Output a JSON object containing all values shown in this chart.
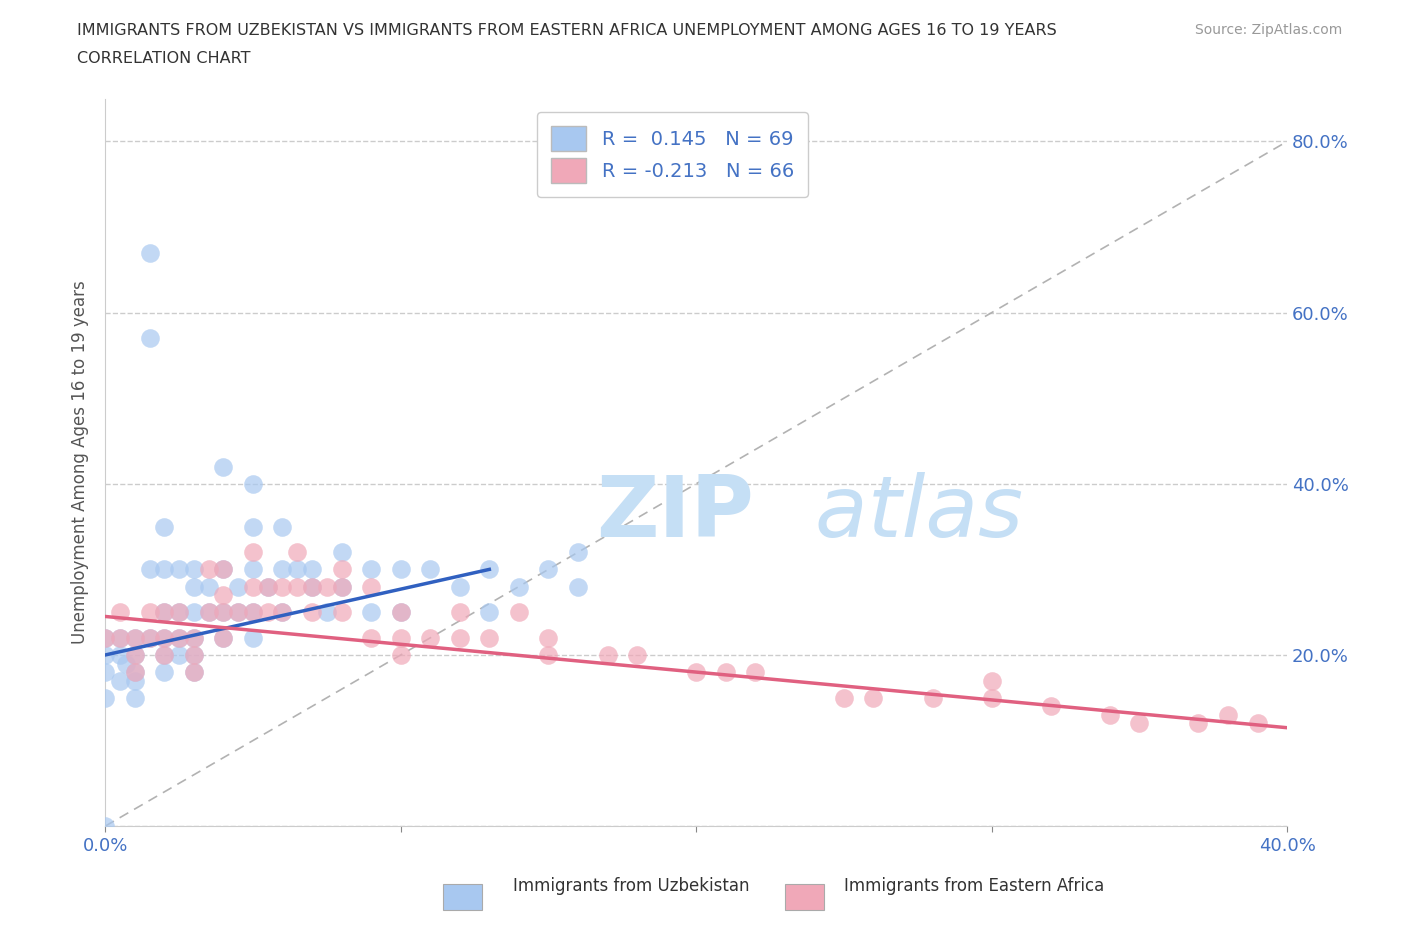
{
  "title_line1": "IMMIGRANTS FROM UZBEKISTAN VS IMMIGRANTS FROM EASTERN AFRICA UNEMPLOYMENT AMONG AGES 16 TO 19 YEARS",
  "title_line2": "CORRELATION CHART",
  "source": "Source: ZipAtlas.com",
  "ylabel": "Unemployment Among Ages 16 to 19 years",
  "xlim": [
    0.0,
    0.4
  ],
  "ylim": [
    0.0,
    0.85
  ],
  "x_tick_positions": [
    0.0,
    0.1,
    0.2,
    0.3,
    0.4
  ],
  "x_tick_labels": [
    "0.0%",
    "",
    "",
    "",
    "40.0%"
  ],
  "y_tick_positions": [
    0.0,
    0.2,
    0.4,
    0.6,
    0.8
  ],
  "y_tick_labels_right": [
    "",
    "20.0%",
    "40.0%",
    "60.0%",
    "80.0%"
  ],
  "R_uzbekistan": 0.145,
  "N_uzbekistan": 69,
  "R_eastern_africa": -0.213,
  "N_eastern_africa": 66,
  "color_uzbekistan": "#a8c8f0",
  "color_eastern_africa": "#f0a8b8",
  "line_color_uzbekistan": "#3060c0",
  "line_color_eastern_africa": "#e06080",
  "watermark_zip": "ZIP",
  "watermark_atlas": "atlas",
  "legend_label_1": "Immigrants from Uzbekistan",
  "legend_label_2": "Immigrants from Eastern Africa",
  "background_color": "#ffffff",
  "grid_color": "#cccccc",
  "uz_x": [
    0.0,
    0.0,
    0.0,
    0.0,
    0.0,
    0.005,
    0.005,
    0.005,
    0.007,
    0.01,
    0.01,
    0.01,
    0.01,
    0.01,
    0.015,
    0.015,
    0.015,
    0.015,
    0.02,
    0.02,
    0.02,
    0.02,
    0.02,
    0.02,
    0.025,
    0.025,
    0.025,
    0.025,
    0.03,
    0.03,
    0.03,
    0.03,
    0.03,
    0.03,
    0.035,
    0.035,
    0.04,
    0.04,
    0.04,
    0.04,
    0.045,
    0.045,
    0.05,
    0.05,
    0.05,
    0.05,
    0.05,
    0.055,
    0.06,
    0.06,
    0.06,
    0.065,
    0.07,
    0.07,
    0.075,
    0.08,
    0.08,
    0.09,
    0.09,
    0.1,
    0.1,
    0.11,
    0.12,
    0.13,
    0.13,
    0.14,
    0.15,
    0.16,
    0.16
  ],
  "uz_y": [
    0.22,
    0.2,
    0.18,
    0.15,
    0.0,
    0.22,
    0.2,
    0.17,
    0.19,
    0.22,
    0.2,
    0.18,
    0.17,
    0.15,
    0.67,
    0.57,
    0.3,
    0.22,
    0.35,
    0.3,
    0.25,
    0.22,
    0.2,
    0.18,
    0.3,
    0.25,
    0.22,
    0.2,
    0.3,
    0.28,
    0.25,
    0.22,
    0.2,
    0.18,
    0.28,
    0.25,
    0.42,
    0.3,
    0.25,
    0.22,
    0.28,
    0.25,
    0.4,
    0.35,
    0.3,
    0.25,
    0.22,
    0.28,
    0.35,
    0.3,
    0.25,
    0.3,
    0.3,
    0.28,
    0.25,
    0.32,
    0.28,
    0.3,
    0.25,
    0.3,
    0.25,
    0.3,
    0.28,
    0.3,
    0.25,
    0.28,
    0.3,
    0.32,
    0.28
  ],
  "ea_x": [
    0.0,
    0.005,
    0.005,
    0.01,
    0.01,
    0.01,
    0.015,
    0.015,
    0.02,
    0.02,
    0.02,
    0.025,
    0.025,
    0.03,
    0.03,
    0.03,
    0.035,
    0.035,
    0.04,
    0.04,
    0.04,
    0.04,
    0.045,
    0.05,
    0.05,
    0.05,
    0.055,
    0.055,
    0.06,
    0.06,
    0.065,
    0.065,
    0.07,
    0.07,
    0.075,
    0.08,
    0.08,
    0.08,
    0.09,
    0.09,
    0.1,
    0.1,
    0.1,
    0.11,
    0.12,
    0.12,
    0.13,
    0.14,
    0.15,
    0.15,
    0.17,
    0.18,
    0.2,
    0.21,
    0.22,
    0.25,
    0.26,
    0.28,
    0.3,
    0.3,
    0.32,
    0.34,
    0.35,
    0.37,
    0.38,
    0.39
  ],
  "ea_y": [
    0.22,
    0.25,
    0.22,
    0.22,
    0.2,
    0.18,
    0.25,
    0.22,
    0.25,
    0.22,
    0.2,
    0.25,
    0.22,
    0.22,
    0.2,
    0.18,
    0.3,
    0.25,
    0.3,
    0.27,
    0.25,
    0.22,
    0.25,
    0.32,
    0.28,
    0.25,
    0.28,
    0.25,
    0.28,
    0.25,
    0.32,
    0.28,
    0.28,
    0.25,
    0.28,
    0.3,
    0.28,
    0.25,
    0.28,
    0.22,
    0.25,
    0.22,
    0.2,
    0.22,
    0.25,
    0.22,
    0.22,
    0.25,
    0.22,
    0.2,
    0.2,
    0.2,
    0.18,
    0.18,
    0.18,
    0.15,
    0.15,
    0.15,
    0.17,
    0.15,
    0.14,
    0.13,
    0.12,
    0.12,
    0.13,
    0.12
  ],
  "uz_line_x": [
    0.0,
    0.13
  ],
  "uz_line_y": [
    0.2,
    0.3
  ],
  "ea_line_x": [
    0.0,
    0.4
  ],
  "ea_line_y": [
    0.245,
    0.115
  ]
}
